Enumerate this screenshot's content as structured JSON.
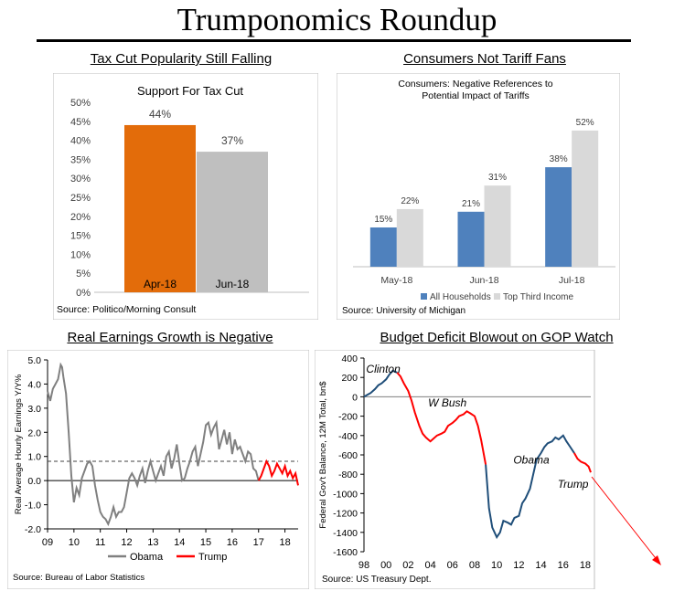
{
  "page_title": "Trumponomics Roundup",
  "chart_data": [
    {
      "type": "bar",
      "section_title": "Tax Cut Popularity Still Falling",
      "title": "Support For Tax Cut",
      "categories": [
        "Apr-18",
        "Jun-18"
      ],
      "values": [
        44,
        37
      ],
      "value_labels": [
        "44%",
        "37%"
      ],
      "colors": [
        "#E36C0A",
        "#BFBFBF"
      ],
      "ylim": [
        0,
        50
      ],
      "y_ticks": [
        "0%",
        "5%",
        "10%",
        "15%",
        "20%",
        "25%",
        "30%",
        "35%",
        "40%",
        "45%",
        "50%"
      ],
      "source": "Source: Politico/Morning Consult"
    },
    {
      "type": "bar",
      "section_title": "Consumers Not Tariff Fans",
      "title_lines": [
        "Consumers:  Negative References to",
        "Potential Impact of Tariffs"
      ],
      "categories": [
        "May-18",
        "Jun-18",
        "Jul-18"
      ],
      "series": [
        {
          "name": "All Households",
          "values": [
            15,
            21,
            38
          ],
          "labels": [
            "15%",
            "21%",
            "38%"
          ],
          "color": "#4F81BD"
        },
        {
          "name": "Top Third Income",
          "values": [
            22,
            31,
            52
          ],
          "labels": [
            "22%",
            "31%",
            "52%"
          ],
          "color": "#D9D9D9"
        }
      ],
      "ylim": [
        0,
        60
      ],
      "legend": "bottom",
      "source": "Source: University of Michigan"
    },
    {
      "type": "line",
      "section_title": "Real Earnings Growth is Negative",
      "ylabel": "Real Average Hourly Earnings Y/Y%",
      "ylim": [
        -2.0,
        5.0
      ],
      "y_ticks": [
        -2.0,
        -1.0,
        0.0,
        1.0,
        2.0,
        3.0,
        4.0,
        5.0
      ],
      "y_tick_labels": [
        "-2.0",
        "-1.0",
        "0.0",
        "1.0",
        "2.0",
        "3.0",
        "4.0",
        "5.0"
      ],
      "xlim": [
        9,
        18.5
      ],
      "x_ticks": [
        9,
        10,
        11,
        12,
        13,
        14,
        15,
        16,
        17,
        18
      ],
      "x_tick_labels": [
        "09",
        "10",
        "11",
        "12",
        "13",
        "14",
        "15",
        "16",
        "17",
        "18"
      ],
      "reference_line": 0.8,
      "series": [
        {
          "name": "Obama",
          "color": "#808080",
          "x": [
            9.0,
            9.1,
            9.2,
            9.3,
            9.4,
            9.5,
            9.55,
            9.6,
            9.7,
            9.8,
            9.9,
            10.0,
            10.1,
            10.2,
            10.3,
            10.4,
            10.5,
            10.6,
            10.7,
            10.8,
            10.9,
            11.0,
            11.1,
            11.2,
            11.3,
            11.4,
            11.5,
            11.6,
            11.7,
            11.8,
            11.9,
            12.0,
            12.1,
            12.2,
            12.3,
            12.4,
            12.5,
            12.6,
            12.7,
            12.8,
            12.9,
            13.0,
            13.1,
            13.2,
            13.3,
            13.4,
            13.5,
            13.6,
            13.7,
            13.8,
            13.9,
            14.0,
            14.1,
            14.2,
            14.3,
            14.4,
            14.5,
            14.6,
            14.7,
            14.8,
            14.9,
            15.0,
            15.1,
            15.2,
            15.3,
            15.4,
            15.5,
            15.6,
            15.7,
            15.8,
            15.9,
            16.0,
            16.1,
            16.2,
            16.3,
            16.4,
            16.5,
            16.6,
            16.7,
            16.8,
            16.9,
            17.0
          ],
          "y": [
            3.7,
            3.3,
            3.8,
            4.0,
            4.2,
            4.8,
            4.7,
            4.3,
            3.6,
            2.0,
            0.2,
            -0.9,
            -0.3,
            -0.6,
            0.1,
            0.4,
            0.7,
            0.8,
            0.6,
            -0.2,
            -0.8,
            -1.3,
            -1.5,
            -1.6,
            -1.8,
            -1.5,
            -1.1,
            -1.5,
            -1.3,
            -1.3,
            -1.1,
            -0.5,
            0.1,
            0.3,
            0.1,
            -0.2,
            0.2,
            0.5,
            -0.1,
            0.4,
            0.8,
            0.4,
            0.0,
            0.3,
            0.6,
            0.2,
            1.0,
            1.2,
            0.5,
            0.9,
            1.5,
            0.7,
            0.0,
            0.1,
            0.5,
            0.8,
            1.2,
            1.4,
            0.6,
            1.1,
            1.6,
            2.3,
            2.4,
            1.9,
            2.2,
            2.4,
            1.3,
            1.7,
            2.1,
            1.5,
            2.0,
            1.1,
            1.7,
            1.3,
            1.4,
            1.1,
            0.8,
            1.2,
            1.1,
            0.5,
            0.4,
            0.0
          ]
        },
        {
          "name": "Trump",
          "color": "#FF0000",
          "x": [
            17.0,
            17.1,
            17.2,
            17.3,
            17.4,
            17.5,
            17.6,
            17.7,
            17.8,
            17.9,
            18.0,
            18.1,
            18.2,
            18.3,
            18.4,
            18.5
          ],
          "y": [
            0.0,
            0.2,
            0.5,
            0.8,
            0.6,
            0.2,
            0.4,
            0.7,
            0.5,
            0.3,
            0.6,
            0.2,
            0.4,
            0.1,
            0.3,
            -0.2
          ]
        }
      ],
      "legend": "bottom",
      "source": "Source: Bureau of Labor Statistics"
    },
    {
      "type": "line",
      "section_title": "Budget Deficit Blowout on GOP Watch",
      "ylabel": "Federal Gov't Balance, 12M Total, bn$",
      "ylim": [
        -1600,
        400
      ],
      "y_ticks": [
        -1600,
        -1400,
        -1200,
        -1000,
        -800,
        -600,
        -400,
        -200,
        0,
        200,
        400
      ],
      "y_tick_labels": [
        "-1600",
        "-1400",
        "-1200",
        "-1000",
        "-800",
        "-600",
        "-400",
        "-200",
        "0",
        "200",
        "400"
      ],
      "xlim": [
        98,
        118.5
      ],
      "x_ticks": [
        98,
        100,
        102,
        104,
        106,
        108,
        110,
        112,
        114,
        116,
        118
      ],
      "x_tick_labels": [
        "98",
        "00",
        "02",
        "04",
        "06",
        "08",
        "10",
        "12",
        "14",
        "16",
        "18"
      ],
      "series": [
        {
          "name": "Clinton",
          "color": "#1F4E79",
          "x": [
            98.0,
            98.3,
            98.6,
            99.0,
            99.3,
            99.6,
            100.0,
            100.3,
            100.6,
            101.0
          ],
          "y": [
            0,
            20,
            40,
            80,
            120,
            140,
            180,
            230,
            270,
            250
          ]
        },
        {
          "name": "W Bush",
          "color": "#FF0000",
          "x": [
            101.0,
            101.3,
            101.6,
            102.0,
            102.3,
            102.6,
            103.0,
            103.3,
            103.6,
            104.0,
            104.3,
            104.6,
            105.0,
            105.3,
            105.6,
            106.0,
            106.3,
            106.6,
            107.0,
            107.3,
            107.6,
            108.0,
            108.3,
            108.6,
            109.0
          ],
          "y": [
            250,
            210,
            140,
            60,
            -40,
            -160,
            -300,
            -380,
            -420,
            -460,
            -430,
            -400,
            -380,
            -360,
            -300,
            -270,
            -240,
            -200,
            -180,
            -150,
            -170,
            -200,
            -300,
            -450,
            -700
          ]
        },
        {
          "name": "Obama",
          "color": "#1F4E79",
          "x": [
            109.0,
            109.3,
            109.6,
            110.0,
            110.3,
            110.6,
            111.0,
            111.3,
            111.6,
            112.0,
            112.3,
            112.6,
            113.0,
            113.3,
            113.6,
            114.0,
            114.3,
            114.6,
            115.0,
            115.3,
            115.6,
            116.0,
            116.3,
            116.6,
            117.0
          ],
          "y": [
            -700,
            -1150,
            -1350,
            -1450,
            -1400,
            -1280,
            -1300,
            -1320,
            -1250,
            -1230,
            -1100,
            -1050,
            -950,
            -800,
            -650,
            -580,
            -520,
            -480,
            -460,
            -420,
            -440,
            -400,
            -460,
            -510,
            -580
          ]
        },
        {
          "name": "Trump",
          "color": "#FF0000",
          "x": [
            117.0,
            117.3,
            117.6,
            118.0,
            118.3,
            118.5
          ],
          "y": [
            -580,
            -640,
            -670,
            -690,
            -720,
            -780
          ]
        }
      ],
      "annotations": [
        "Clinton",
        "W Bush",
        "Obama",
        "Trump"
      ],
      "source": "Source: US Treasury Dept."
    }
  ]
}
